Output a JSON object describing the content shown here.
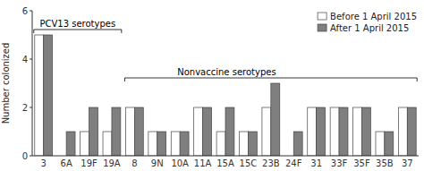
{
  "chart_data": {
    "type": "bar",
    "ylabel": "Number colonized",
    "categories": [
      "3",
      "6A",
      "19F",
      "19A",
      "8",
      "9N",
      "10A",
      "11A",
      "15A",
      "15C",
      "23B",
      "24F",
      "31",
      "33F",
      "35F",
      "35B",
      "37"
    ],
    "series": [
      {
        "name": "Before 1 April 2015",
        "color": "#ffffff",
        "values": [
          5,
          0,
          1,
          1,
          2,
          1,
          1,
          2,
          1,
          1,
          2,
          0,
          2,
          2,
          2,
          1,
          2
        ]
      },
      {
        "name": "After 1 April 2015",
        "color": "#7f7f7f",
        "values": [
          5,
          1,
          2,
          2,
          2,
          1,
          1,
          2,
          2,
          1,
          3,
          1,
          2,
          2,
          2,
          1,
          2
        ]
      }
    ],
    "ylim": [
      0,
      6
    ],
    "yticks": [
      0,
      2,
      4,
      6
    ],
    "grid": false,
    "legend": "upper right",
    "annotations": [
      {
        "text": "PCV13 serotypes",
        "from": "3",
        "to": "19A"
      },
      {
        "text": "Nonvaccine serotypes",
        "from": "8",
        "to": "37"
      }
    ]
  }
}
